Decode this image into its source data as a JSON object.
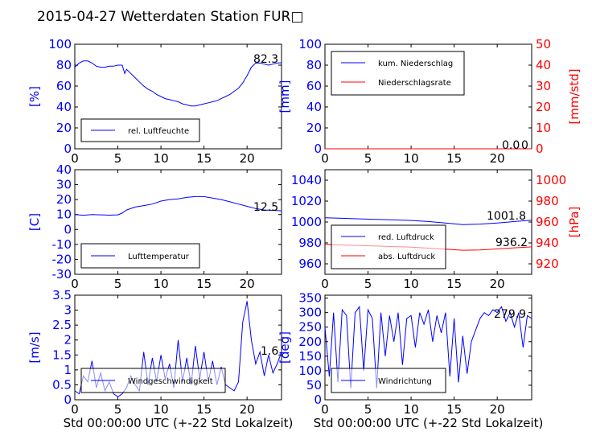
{
  "page_title": "2015-04-27 Wetterdaten Station FUR□",
  "colors": {
    "primary": "#0000ff",
    "secondary": "#ff0000",
    "text": "#000000"
  },
  "chart_data": [
    {
      "id": "humidity",
      "type": "line",
      "ylabel": "[%]",
      "xlim": [
        0,
        24
      ],
      "ylim": [
        0,
        100
      ],
      "xticks": [
        0,
        5,
        10,
        15,
        20
      ],
      "yticks": [
        0,
        20,
        40,
        60,
        80,
        100
      ],
      "legend": [
        "rel. Luftfeuchte"
      ],
      "annotation": "82.3",
      "series": [
        {
          "name": "rel. Luftfeuchte",
          "axis": "left",
          "color": "#0000ff",
          "x": [
            0,
            0.5,
            1,
            1.5,
            2,
            2.5,
            3,
            3.5,
            4,
            4.5,
            5,
            5.5,
            5.8,
            6,
            6.5,
            7,
            7.5,
            8,
            8.5,
            9,
            9.5,
            10,
            10.5,
            11,
            11.5,
            12,
            12.5,
            13,
            13.5,
            14,
            14.5,
            15,
            15.5,
            16,
            16.5,
            17,
            17.5,
            18,
            18.5,
            19,
            19.5,
            20,
            20.5,
            21,
            21.5,
            22,
            22.5,
            23,
            23.5,
            24
          ],
          "y": [
            78,
            82,
            84,
            84,
            82,
            79,
            78,
            78,
            79,
            79,
            80,
            80,
            72,
            76,
            72,
            68,
            64,
            60,
            57,
            55,
            52,
            50,
            48,
            47,
            46,
            45,
            43,
            42,
            41,
            41,
            42,
            43,
            44,
            45,
            46,
            48,
            50,
            52,
            55,
            58,
            63,
            70,
            78,
            82,
            82,
            81,
            80,
            81,
            82,
            82.3
          ]
        }
      ]
    },
    {
      "id": "precipitation",
      "type": "line",
      "ylabel": "[mm]",
      "y2label": "[mm/std]",
      "xlim": [
        0,
        24
      ],
      "ylim": [
        0,
        100
      ],
      "y2lim": [
        0,
        50
      ],
      "xticks": [
        0,
        5,
        10,
        15,
        20
      ],
      "yticks": [
        0,
        20,
        40,
        60,
        80,
        100
      ],
      "y2ticks": [
        0,
        10,
        20,
        30,
        40,
        50
      ],
      "legend": [
        "kum. Niederschlag",
        "Niederschlagsrate"
      ],
      "annotation": "0.0",
      "annotation2": "0",
      "series": [
        {
          "name": "kum. Niederschlag",
          "axis": "left",
          "color": "#0000ff",
          "x": [
            0,
            24
          ],
          "y": [
            0,
            0
          ]
        },
        {
          "name": "Niederschlagsrate",
          "axis": "right",
          "color": "#ff0000",
          "x": [
            0,
            24
          ],
          "y": [
            0,
            0
          ]
        }
      ]
    },
    {
      "id": "temperature",
      "type": "line",
      "ylabel": "[C]",
      "xlim": [
        0,
        24
      ],
      "ylim": [
        -30,
        40
      ],
      "xticks": [
        0,
        5,
        10,
        15,
        20
      ],
      "yticks": [
        -30,
        -20,
        -10,
        0,
        10,
        20,
        30,
        40
      ],
      "legend": [
        "Lufttemperatur"
      ],
      "annotation": "12.5",
      "series": [
        {
          "name": "Lufttemperatur",
          "axis": "left",
          "color": "#0000ff",
          "x": [
            0,
            1,
            2,
            3,
            4,
            5,
            5.5,
            6,
            7,
            8,
            9,
            10,
            11,
            12,
            13,
            14,
            15,
            16,
            17,
            18,
            19,
            20,
            21,
            22,
            23,
            24
          ],
          "y": [
            10.0,
            9.5,
            10.0,
            9.8,
            9.6,
            9.8,
            11.0,
            13.0,
            15.0,
            16.0,
            17.0,
            19.0,
            20.0,
            20.5,
            21.5,
            22.0,
            22.0,
            21.0,
            20.0,
            18.5,
            17.0,
            15.5,
            14.0,
            13.0,
            12.8,
            12.5
          ]
        }
      ]
    },
    {
      "id": "pressure",
      "type": "line",
      "ylabel": "",
      "y2label": "[hPa]",
      "xlim": [
        0,
        24
      ],
      "ylim": [
        950,
        1050
      ],
      "y2lim": [
        910,
        1010
      ],
      "xticks": [
        0,
        5,
        10,
        15,
        20
      ],
      "yticks": [
        960,
        980,
        1000,
        1020,
        1040
      ],
      "y2ticks": [
        920,
        940,
        960,
        980,
        1000
      ],
      "legend": [
        "red. Luftdruck",
        "abs. Luftdruck"
      ],
      "annotation": "1001.8",
      "annotation2": "936.2",
      "series": [
        {
          "name": "red. Luftdruck",
          "axis": "left",
          "color": "#0000ff",
          "x": [
            0,
            2,
            4,
            6,
            8,
            10,
            12,
            14,
            16,
            18,
            20,
            22,
            24
          ],
          "y": [
            1004,
            1003.5,
            1003,
            1002.5,
            1002,
            1001.5,
            1000.5,
            999,
            997.5,
            998,
            999,
            1000.5,
            1001.8
          ]
        },
        {
          "name": "abs. Luftdruck",
          "axis": "right",
          "color": "#ff0000",
          "x": [
            0,
            2,
            4,
            6,
            8,
            10,
            12,
            14,
            16,
            18,
            20,
            22,
            24
          ],
          "y": [
            938.5,
            938,
            937.5,
            937,
            936.5,
            936,
            935,
            934,
            933,
            933.2,
            934.2,
            935.3,
            936.2
          ]
        }
      ]
    },
    {
      "id": "wind_speed",
      "type": "line",
      "ylabel": "[m/s]",
      "xlabel": "Std 00:00:00 UTC (+-22 Std Lokalzeit)",
      "xlim": [
        0,
        24
      ],
      "ylim": [
        0,
        3.5
      ],
      "xticks": [
        0,
        5,
        10,
        15,
        20
      ],
      "yticks": [
        0,
        0.5,
        1.0,
        1.5,
        2.0,
        2.5,
        3.0,
        3.5
      ],
      "legend": [
        "Windgeschwindigkeit"
      ],
      "annotation": "1.6",
      "series": [
        {
          "name": "Windgeschwindigkeit",
          "axis": "left",
          "color": "#0000ff",
          "x": [
            0,
            0.5,
            1,
            1.5,
            2,
            2.5,
            3,
            3.5,
            4,
            4.5,
            5,
            5.5,
            6,
            6.5,
            7,
            7.5,
            8,
            8.5,
            9,
            9.5,
            10,
            10.5,
            11,
            11.5,
            12,
            12.5,
            13,
            13.5,
            14,
            14.5,
            15,
            15.5,
            16,
            16.5,
            17,
            17.5,
            18,
            18.5,
            19,
            19.5,
            20,
            20.5,
            21,
            21.5,
            22,
            22.5,
            23,
            23.5,
            24
          ],
          "y": [
            0.3,
            0.2,
            0.8,
            0.6,
            1.3,
            0.4,
            0.9,
            0.3,
            0.6,
            0.2,
            0.1,
            0.2,
            0.4,
            0.8,
            0.5,
            0.3,
            1.6,
            0.5,
            1.4,
            0.6,
            1.5,
            0.7,
            1.2,
            0.4,
            2.0,
            0.6,
            1.4,
            0.5,
            1.8,
            0.7,
            1.6,
            0.6,
            1.3,
            0.5,
            1.1,
            0.5,
            0.4,
            0.3,
            0.6,
            2.6,
            3.3,
            2.0,
            1.2,
            1.6,
            0.8,
            1.5,
            0.9,
            1.2,
            1.6
          ]
        }
      ]
    },
    {
      "id": "wind_direction",
      "type": "line",
      "ylabel": "[deg]",
      "xlabel": "Std 00:00:00 UTC (+-22 Std Lokalzeit)",
      "xlim": [
        0,
        24
      ],
      "ylim": [
        0,
        360
      ],
      "xticks": [
        0,
        5,
        10,
        15,
        20
      ],
      "yticks": [
        0,
        50,
        100,
        150,
        200,
        250,
        300,
        350
      ],
      "legend": [
        "Windrichtung"
      ],
      "annotation": "279.9",
      "series": [
        {
          "name": "Windrichtung",
          "axis": "left",
          "color": "#0000ff",
          "x": [
            0,
            0.5,
            1,
            1.5,
            2,
            2.5,
            3,
            3.5,
            4,
            4.5,
            5,
            5.5,
            6,
            6.5,
            7,
            7.5,
            8,
            8.5,
            9,
            9.5,
            10,
            10.5,
            11,
            11.5,
            12,
            12.5,
            13,
            13.5,
            14,
            14.5,
            15,
            15.5,
            16,
            16.5,
            17,
            17.5,
            18,
            18.5,
            19,
            19.5,
            20,
            20.5,
            21,
            21.5,
            22,
            22.5,
            23,
            23.5,
            24
          ],
          "y": [
            250,
            80,
            300,
            60,
            310,
            290,
            40,
            300,
            320,
            100,
            310,
            280,
            40,
            300,
            150,
            290,
            200,
            300,
            120,
            280,
            290,
            180,
            300,
            260,
            310,
            200,
            290,
            230,
            300,
            80,
            280,
            60,
            220,
            90,
            200,
            240,
            280,
            300,
            290,
            310,
            300,
            320,
            270,
            300,
            250,
            300,
            180,
            290,
            280
          ]
        }
      ]
    }
  ]
}
